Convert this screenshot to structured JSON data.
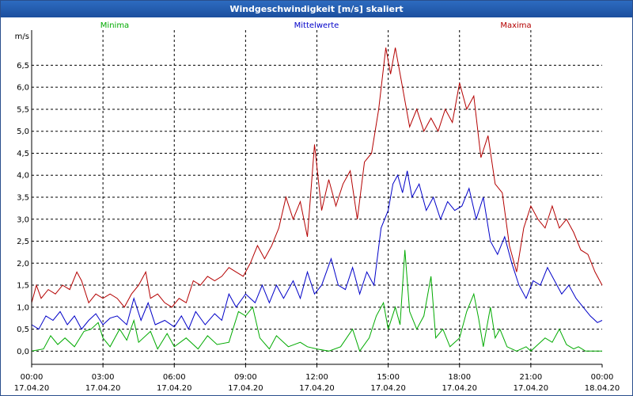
{
  "window": {
    "title": "Windgeschwindigkeit [m/s] skaliert"
  },
  "chart_data": {
    "type": "line",
    "title": "Windgeschwindigkeit [m/s] skaliert",
    "ylabel": "m/s",
    "xlabel": "",
    "ylim": [
      -0.3,
      7.3
    ],
    "xlim_hours": [
      0,
      24
    ],
    "grid": true,
    "legend_placement": "top",
    "y_ticks": [
      "0,0",
      "0,5",
      "1,0",
      "1,5",
      "2,0",
      "2,5",
      "3,0",
      "3,5",
      "4,0",
      "4,5",
      "5,0",
      "5,5",
      "6,0",
      "6,5"
    ],
    "y_tick_values": [
      0,
      0.5,
      1,
      1.5,
      2,
      2.5,
      3,
      3.5,
      4,
      4.5,
      5,
      5.5,
      6,
      6.5
    ],
    "x_ticks": [
      {
        "hour": 0,
        "time": "00:00",
        "date": "17.04.20"
      },
      {
        "hour": 3,
        "time": "03:00",
        "date": "17.04.20"
      },
      {
        "hour": 6,
        "time": "06:00",
        "date": "17.04.20"
      },
      {
        "hour": 9,
        "time": "09:00",
        "date": "17.04.20"
      },
      {
        "hour": 12,
        "time": "12:00",
        "date": "17.04.20"
      },
      {
        "hour": 15,
        "time": "15:00",
        "date": "17.04.20"
      },
      {
        "hour": 18,
        "time": "18:00",
        "date": "17.04.20"
      },
      {
        "hour": 21,
        "time": "21:00",
        "date": "17.04.20"
      },
      {
        "hour": 24,
        "time": "00:00",
        "date": "18.04.20"
      }
    ],
    "series": [
      {
        "name": "Minima",
        "color": "#00aa00",
        "points": [
          [
            0,
            0.0
          ],
          [
            0.5,
            0.05
          ],
          [
            0.8,
            0.35
          ],
          [
            1.1,
            0.15
          ],
          [
            1.4,
            0.3
          ],
          [
            1.8,
            0.1
          ],
          [
            2.2,
            0.45
          ],
          [
            2.5,
            0.5
          ],
          [
            2.8,
            0.65
          ],
          [
            3.0,
            0.3
          ],
          [
            3.3,
            0.1
          ],
          [
            3.7,
            0.5
          ],
          [
            4.0,
            0.25
          ],
          [
            4.3,
            0.7
          ],
          [
            4.5,
            0.2
          ],
          [
            5.0,
            0.45
          ],
          [
            5.3,
            0.05
          ],
          [
            5.7,
            0.4
          ],
          [
            6.0,
            0.1
          ],
          [
            6.5,
            0.3
          ],
          [
            7.0,
            0.05
          ],
          [
            7.4,
            0.35
          ],
          [
            7.8,
            0.15
          ],
          [
            8.3,
            0.2
          ],
          [
            8.7,
            0.9
          ],
          [
            9.0,
            0.8
          ],
          [
            9.3,
            1.0
          ],
          [
            9.6,
            0.3
          ],
          [
            10.0,
            0.05
          ],
          [
            10.3,
            0.35
          ],
          [
            10.8,
            0.1
          ],
          [
            11.3,
            0.2
          ],
          [
            11.6,
            0.1
          ],
          [
            12.0,
            0.05
          ],
          [
            12.5,
            0.0
          ],
          [
            13.0,
            0.1
          ],
          [
            13.5,
            0.5
          ],
          [
            13.8,
            0.0
          ],
          [
            14.2,
            0.3
          ],
          [
            14.5,
            0.8
          ],
          [
            14.8,
            1.1
          ],
          [
            15.0,
            0.5
          ],
          [
            15.3,
            1.0
          ],
          [
            15.5,
            0.6
          ],
          [
            15.7,
            2.3
          ],
          [
            15.9,
            0.9
          ],
          [
            16.2,
            0.5
          ],
          [
            16.5,
            0.8
          ],
          [
            16.8,
            1.7
          ],
          [
            17.0,
            0.3
          ],
          [
            17.3,
            0.5
          ],
          [
            17.6,
            0.1
          ],
          [
            18.0,
            0.3
          ],
          [
            18.3,
            0.9
          ],
          [
            18.6,
            1.3
          ],
          [
            18.8,
            0.75
          ],
          [
            19.0,
            0.1
          ],
          [
            19.3,
            1.0
          ],
          [
            19.5,
            0.3
          ],
          [
            19.7,
            0.5
          ],
          [
            20.0,
            0.1
          ],
          [
            20.4,
            0.0
          ],
          [
            20.8,
            0.1
          ],
          [
            21.0,
            0.0
          ],
          [
            21.3,
            0.15
          ],
          [
            21.6,
            0.3
          ],
          [
            21.9,
            0.2
          ],
          [
            22.2,
            0.5
          ],
          [
            22.5,
            0.15
          ],
          [
            22.8,
            0.05
          ],
          [
            23.0,
            0.1
          ],
          [
            23.3,
            0.0
          ],
          [
            24.0,
            0.0
          ]
        ]
      },
      {
        "name": "Mittelwerte",
        "color": "#0000c8",
        "points": [
          [
            0,
            0.6
          ],
          [
            0.3,
            0.5
          ],
          [
            0.6,
            0.8
          ],
          [
            0.9,
            0.7
          ],
          [
            1.2,
            0.9
          ],
          [
            1.5,
            0.6
          ],
          [
            1.8,
            0.8
          ],
          [
            2.1,
            0.5
          ],
          [
            2.4,
            0.7
          ],
          [
            2.7,
            0.85
          ],
          [
            3.0,
            0.6
          ],
          [
            3.3,
            0.75
          ],
          [
            3.6,
            0.8
          ],
          [
            4.0,
            0.6
          ],
          [
            4.3,
            1.2
          ],
          [
            4.6,
            0.7
          ],
          [
            4.9,
            1.1
          ],
          [
            5.2,
            0.6
          ],
          [
            5.6,
            0.7
          ],
          [
            6.0,
            0.55
          ],
          [
            6.3,
            0.8
          ],
          [
            6.6,
            0.5
          ],
          [
            6.9,
            0.9
          ],
          [
            7.3,
            0.6
          ],
          [
            7.7,
            0.85
          ],
          [
            8.0,
            0.7
          ],
          [
            8.3,
            1.3
          ],
          [
            8.6,
            1.0
          ],
          [
            9.0,
            1.3
          ],
          [
            9.4,
            1.1
          ],
          [
            9.7,
            1.5
          ],
          [
            10.0,
            1.1
          ],
          [
            10.3,
            1.5
          ],
          [
            10.6,
            1.2
          ],
          [
            11.0,
            1.6
          ],
          [
            11.3,
            1.2
          ],
          [
            11.6,
            1.8
          ],
          [
            11.9,
            1.3
          ],
          [
            12.2,
            1.5
          ],
          [
            12.6,
            2.1
          ],
          [
            12.9,
            1.5
          ],
          [
            13.2,
            1.4
          ],
          [
            13.5,
            1.9
          ],
          [
            13.8,
            1.3
          ],
          [
            14.1,
            1.8
          ],
          [
            14.4,
            1.5
          ],
          [
            14.7,
            2.8
          ],
          [
            15.0,
            3.2
          ],
          [
            15.2,
            3.8
          ],
          [
            15.4,
            4.0
          ],
          [
            15.6,
            3.6
          ],
          [
            15.8,
            4.1
          ],
          [
            16.0,
            3.5
          ],
          [
            16.3,
            3.8
          ],
          [
            16.6,
            3.2
          ],
          [
            16.9,
            3.5
          ],
          [
            17.2,
            3.0
          ],
          [
            17.5,
            3.4
          ],
          [
            17.8,
            3.2
          ],
          [
            18.1,
            3.3
          ],
          [
            18.4,
            3.7
          ],
          [
            18.7,
            3.0
          ],
          [
            19.0,
            3.5
          ],
          [
            19.3,
            2.5
          ],
          [
            19.6,
            2.2
          ],
          [
            19.9,
            2.6
          ],
          [
            20.2,
            2.0
          ],
          [
            20.5,
            1.5
          ],
          [
            20.8,
            1.2
          ],
          [
            21.1,
            1.6
          ],
          [
            21.4,
            1.5
          ],
          [
            21.7,
            1.9
          ],
          [
            22.0,
            1.6
          ],
          [
            22.3,
            1.3
          ],
          [
            22.6,
            1.5
          ],
          [
            22.9,
            1.2
          ],
          [
            23.2,
            1.0
          ],
          [
            23.5,
            0.8
          ],
          [
            23.8,
            0.65
          ],
          [
            24.0,
            0.7
          ]
        ]
      },
      {
        "name": "Maxima",
        "color": "#b40000",
        "points": [
          [
            0,
            1.1
          ],
          [
            0.2,
            1.5
          ],
          [
            0.4,
            1.2
          ],
          [
            0.7,
            1.4
          ],
          [
            1.0,
            1.3
          ],
          [
            1.3,
            1.5
          ],
          [
            1.6,
            1.4
          ],
          [
            1.9,
            1.8
          ],
          [
            2.1,
            1.6
          ],
          [
            2.4,
            1.1
          ],
          [
            2.7,
            1.3
          ],
          [
            3.0,
            1.2
          ],
          [
            3.3,
            1.3
          ],
          [
            3.6,
            1.2
          ],
          [
            3.9,
            1.0
          ],
          [
            4.2,
            1.3
          ],
          [
            4.5,
            1.5
          ],
          [
            4.8,
            1.8
          ],
          [
            5.0,
            1.2
          ],
          [
            5.3,
            1.3
          ],
          [
            5.6,
            1.1
          ],
          [
            5.9,
            1.0
          ],
          [
            6.2,
            1.2
          ],
          [
            6.5,
            1.1
          ],
          [
            6.8,
            1.6
          ],
          [
            7.1,
            1.5
          ],
          [
            7.4,
            1.7
          ],
          [
            7.7,
            1.6
          ],
          [
            8.0,
            1.7
          ],
          [
            8.3,
            1.9
          ],
          [
            8.6,
            1.8
          ],
          [
            8.9,
            1.7
          ],
          [
            9.2,
            2.0
          ],
          [
            9.5,
            2.4
          ],
          [
            9.8,
            2.1
          ],
          [
            10.1,
            2.4
          ],
          [
            10.4,
            2.8
          ],
          [
            10.7,
            3.5
          ],
          [
            11.0,
            3.0
          ],
          [
            11.3,
            3.4
          ],
          [
            11.6,
            2.6
          ],
          [
            11.9,
            4.7
          ],
          [
            12.2,
            3.2
          ],
          [
            12.5,
            3.9
          ],
          [
            12.8,
            3.3
          ],
          [
            13.1,
            3.8
          ],
          [
            13.4,
            4.1
          ],
          [
            13.7,
            3.0
          ],
          [
            14.0,
            4.3
          ],
          [
            14.3,
            4.5
          ],
          [
            14.6,
            5.5
          ],
          [
            14.9,
            6.9
          ],
          [
            15.1,
            6.3
          ],
          [
            15.3,
            6.9
          ],
          [
            15.6,
            6.0
          ],
          [
            15.9,
            5.1
          ],
          [
            16.2,
            5.5
          ],
          [
            16.5,
            5.0
          ],
          [
            16.8,
            5.3
          ],
          [
            17.1,
            5.0
          ],
          [
            17.4,
            5.5
          ],
          [
            17.7,
            5.2
          ],
          [
            18.0,
            6.1
          ],
          [
            18.3,
            5.5
          ],
          [
            18.6,
            5.8
          ],
          [
            18.9,
            4.4
          ],
          [
            19.2,
            4.9
          ],
          [
            19.5,
            3.8
          ],
          [
            19.8,
            3.6
          ],
          [
            20.1,
            2.4
          ],
          [
            20.4,
            1.8
          ],
          [
            20.7,
            2.8
          ],
          [
            21.0,
            3.3
          ],
          [
            21.3,
            3.0
          ],
          [
            21.6,
            2.8
          ],
          [
            21.9,
            3.3
          ],
          [
            22.2,
            2.8
          ],
          [
            22.5,
            3.0
          ],
          [
            22.8,
            2.7
          ],
          [
            23.1,
            2.3
          ],
          [
            23.4,
            2.2
          ],
          [
            23.7,
            1.8
          ],
          [
            24.0,
            1.5
          ]
        ]
      }
    ]
  }
}
